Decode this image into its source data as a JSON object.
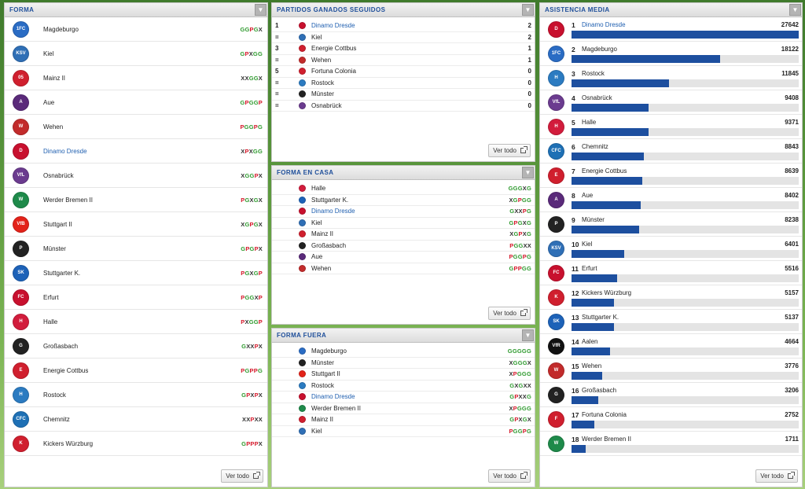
{
  "panels": {
    "forma": {
      "title": "FORMA",
      "view_all": "Ver todo"
    },
    "ganados": {
      "title": "PARTIDOS GANADOS SEGUIDOS",
      "view_all": "Ver todo"
    },
    "casa": {
      "title": "FORMA EN CASA",
      "view_all": "Ver todo"
    },
    "fuera": {
      "title": "FORMA FUERA",
      "view_all": "Ver todo"
    },
    "asistencia": {
      "title": "ASISTENCIA MEDIA",
      "view_all": "Ver todo"
    }
  },
  "forma": [
    {
      "team": "Magdeburgo",
      "form": "GGPGX",
      "crest": "1FC",
      "color": "#2a6cc4"
    },
    {
      "team": "Kiel",
      "form": "GPXGG",
      "crest": "KSV",
      "color": "#2f6fb6"
    },
    {
      "team": "Mainz II",
      "form": "XXGGX",
      "crest": "05",
      "color": "#d01f2e"
    },
    {
      "team": "Aue",
      "form": "GPGGP",
      "crest": "A",
      "color": "#5a2a7a"
    },
    {
      "team": "Wehen",
      "form": "PGGPG",
      "crest": "W",
      "color": "#c22b2b"
    },
    {
      "team": "Dinamo Dresde",
      "form": "XPXGG",
      "crest": "D",
      "color": "#c8102e"
    },
    {
      "team": "Osnabrück",
      "form": "XGGPX",
      "crest": "VfL",
      "color": "#6b3b8f"
    },
    {
      "team": "Werder Bremen II",
      "form": "PGXGX",
      "crest": "W",
      "color": "#1e8a4a"
    },
    {
      "team": "Stuttgart II",
      "form": "XGPGX",
      "crest": "VfB",
      "color": "#e32219"
    },
    {
      "team": "Münster",
      "form": "GPGPX",
      "crest": "P",
      "color": "#222222"
    },
    {
      "team": "Stuttgarter K.",
      "form": "PGXGP",
      "crest": "SK",
      "color": "#1d62b8"
    },
    {
      "team": "Erfurt",
      "form": "PGGXP",
      "crest": "FC",
      "color": "#c8102e"
    },
    {
      "team": "Halle",
      "form": "PXGGP",
      "crest": "H",
      "color": "#d21c3c"
    },
    {
      "team": "Großasbach",
      "form": "GXXPX",
      "crest": "G",
      "color": "#222222"
    },
    {
      "team": "Energie Cottbus",
      "form": "PGPPG",
      "crest": "E",
      "color": "#d01f2e"
    },
    {
      "team": "Rostock",
      "form": "GPXPX",
      "crest": "H",
      "color": "#2b7bc1"
    },
    {
      "team": "Chemnitz",
      "form": "XXPXX",
      "crest": "CFC",
      "color": "#1e70b5"
    },
    {
      "team": "Kickers Würzburg",
      "form": "GPPPX",
      "crest": "K",
      "color": "#d01f2e"
    }
  ],
  "ganados": [
    {
      "pos": "1",
      "team": "Dinamo Dresde",
      "val": "2",
      "crest": "D",
      "color": "#c8102e"
    },
    {
      "pos": "=",
      "team": "Kiel",
      "val": "2",
      "crest": "K",
      "color": "#2f6fb6"
    },
    {
      "pos": "3",
      "team": "Energie Cottbus",
      "val": "1",
      "crest": "E",
      "color": "#d01f2e"
    },
    {
      "pos": "=",
      "team": "Wehen",
      "val": "1",
      "crest": "W",
      "color": "#c22b2b"
    },
    {
      "pos": "5",
      "team": "Fortuna Colonia",
      "val": "0",
      "crest": "F",
      "color": "#d01f2e"
    },
    {
      "pos": "=",
      "team": "Rostock",
      "val": "0",
      "crest": "H",
      "color": "#2b7bc1"
    },
    {
      "pos": "=",
      "team": "Münster",
      "val": "0",
      "crest": "P",
      "color": "#222222"
    },
    {
      "pos": "=",
      "team": "Osnabrück",
      "val": "0",
      "crest": "V",
      "color": "#6b3b8f"
    }
  ],
  "casa": [
    {
      "team": "Halle",
      "form": "GGGXG",
      "crest": "H",
      "color": "#d21c3c"
    },
    {
      "team": "Stuttgarter K.",
      "form": "XGPGG",
      "crest": "S",
      "color": "#1d62b8"
    },
    {
      "team": "Dinamo Dresde",
      "form": "GXXPG",
      "crest": "D",
      "color": "#c8102e"
    },
    {
      "team": "Kiel",
      "form": "GPGXG",
      "crest": "K",
      "color": "#2f6fb6"
    },
    {
      "team": "Mainz II",
      "form": "XGPXG",
      "crest": "M",
      "color": "#d01f2e"
    },
    {
      "team": "Großasbach",
      "form": "PGGXX",
      "crest": "G",
      "color": "#222222"
    },
    {
      "team": "Aue",
      "form": "PGGPG",
      "crest": "A",
      "color": "#5a2a7a"
    },
    {
      "team": "Wehen",
      "form": "GPPGG",
      "crest": "W",
      "color": "#c22b2b"
    }
  ],
  "fuera": [
    {
      "team": "Magdeburgo",
      "form": "GGGGG",
      "crest": "M",
      "color": "#2a6cc4"
    },
    {
      "team": "Münster",
      "form": "XGGGX",
      "crest": "P",
      "color": "#222222"
    },
    {
      "team": "Stuttgart II",
      "form": "XPGGG",
      "crest": "V",
      "color": "#e32219"
    },
    {
      "team": "Rostock",
      "form": "GXGXX",
      "crest": "H",
      "color": "#2b7bc1"
    },
    {
      "team": "Dinamo Dresde",
      "form": "GPXXG",
      "crest": "D",
      "color": "#c8102e"
    },
    {
      "team": "Werder Bremen II",
      "form": "XPGGG",
      "crest": "W",
      "color": "#1e8a4a"
    },
    {
      "team": "Mainz II",
      "form": "GPXGX",
      "crest": "M",
      "color": "#d01f2e"
    },
    {
      "team": "Kiel",
      "form": "PGGPG",
      "crest": "K",
      "color": "#2f6fb6"
    }
  ],
  "asistencia": [
    {
      "rank": "1",
      "team": "Dinamo Dresde",
      "value": 27642,
      "label": "27642",
      "crest": "D",
      "color": "#c8102e"
    },
    {
      "rank": "2",
      "team": "Magdeburgo",
      "value": 18122,
      "label": "18122",
      "crest": "1FC",
      "color": "#2a6cc4"
    },
    {
      "rank": "3",
      "team": "Rostock",
      "value": 11845,
      "label": "11845",
      "crest": "H",
      "color": "#2b7bc1"
    },
    {
      "rank": "4",
      "team": "Osnabrück",
      "value": 9408,
      "label": "9408",
      "crest": "VfL",
      "color": "#6b3b8f"
    },
    {
      "rank": "5",
      "team": "Halle",
      "value": 9371,
      "label": "9371",
      "crest": "H",
      "color": "#d21c3c"
    },
    {
      "rank": "6",
      "team": "Chemnitz",
      "value": 8843,
      "label": "8843",
      "crest": "CFC",
      "color": "#1e70b5"
    },
    {
      "rank": "7",
      "team": "Energie Cottbus",
      "value": 8639,
      "label": "8639",
      "crest": "E",
      "color": "#d01f2e"
    },
    {
      "rank": "8",
      "team": "Aue",
      "value": 8402,
      "label": "8402",
      "crest": "A",
      "color": "#5a2a7a"
    },
    {
      "rank": "9",
      "team": "Münster",
      "value": 8238,
      "label": "8238",
      "crest": "P",
      "color": "#222222"
    },
    {
      "rank": "10",
      "team": "Kiel",
      "value": 6401,
      "label": "6401",
      "crest": "KSV",
      "color": "#2f6fb6"
    },
    {
      "rank": "11",
      "team": "Erfurt",
      "value": 5516,
      "label": "5516",
      "crest": "FC",
      "color": "#c8102e"
    },
    {
      "rank": "12",
      "team": "Kickers Würzburg",
      "value": 5157,
      "label": "5157",
      "crest": "K",
      "color": "#d01f2e"
    },
    {
      "rank": "13",
      "team": "Stuttgarter K.",
      "value": 5137,
      "label": "5137",
      "crest": "SK",
      "color": "#1d62b8"
    },
    {
      "rank": "14",
      "team": "Aalen",
      "value": 4664,
      "label": "4664",
      "crest": "VfR",
      "color": "#111111"
    },
    {
      "rank": "15",
      "team": "Wehen",
      "value": 3776,
      "label": "3776",
      "crest": "W",
      "color": "#c22b2b"
    },
    {
      "rank": "16",
      "team": "Großasbach",
      "value": 3206,
      "label": "3206",
      "crest": "G",
      "color": "#222222"
    },
    {
      "rank": "17",
      "team": "Fortuna Colonia",
      "value": 2752,
      "label": "2752",
      "crest": "F",
      "color": "#d01f2e"
    },
    {
      "rank": "18",
      "team": "Werder Bremen II",
      "value": 1711,
      "label": "1711",
      "crest": "W",
      "color": "#1e8a4a"
    }
  ],
  "highlight_team": "Dinamo Dresde",
  "colors": {
    "bar": "#1d4f9f",
    "win": "#2f9a2f",
    "loss": "#d4182a",
    "draw": "#333333"
  }
}
